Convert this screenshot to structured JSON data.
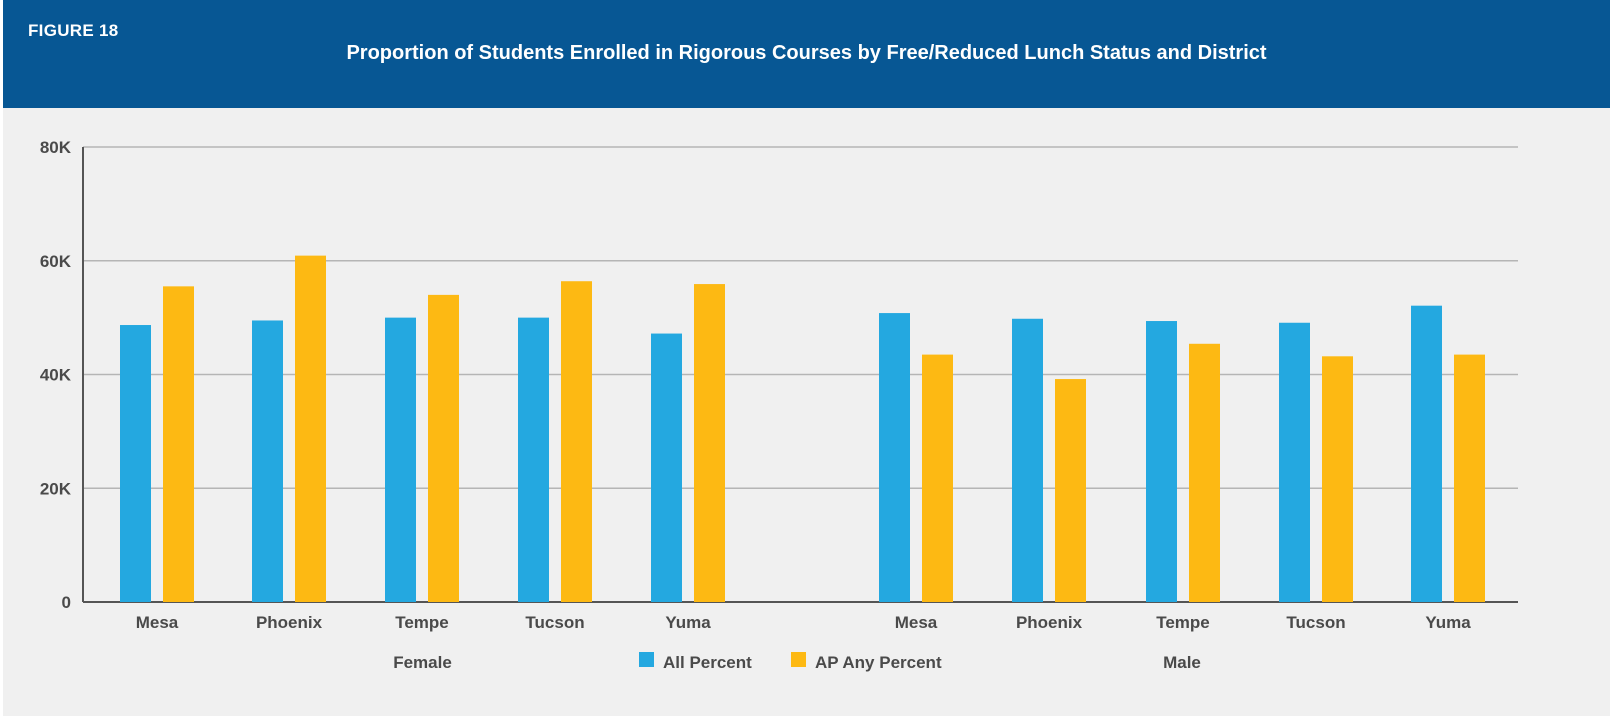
{
  "figure": {
    "label": "FIGURE 18",
    "title": "Proportion of Students Enrolled in Rigorous Courses by Free/Reduced Lunch Status and District"
  },
  "colors": {
    "header_bg": "#075794",
    "series_all": "#24a8e0",
    "series_ap": "#fdb913",
    "grid": "#b5b5b5",
    "axis": "#555555"
  },
  "chart_data": {
    "type": "bar",
    "title": "Proportion of Students Enrolled in Rigorous Courses by Free/Reduced Lunch Status and District",
    "ylim": [
      0,
      80000
    ],
    "y_ticks": [
      {
        "value": 0,
        "label": "0"
      },
      {
        "value": 20000,
        "label": "20K"
      },
      {
        "value": 40000,
        "label": "40K"
      },
      {
        "value": 60000,
        "label": "60K"
      },
      {
        "value": 80000,
        "label": "80K"
      }
    ],
    "grid": true,
    "legend_position": "bottom-center",
    "groups": [
      {
        "name": "Female",
        "categories": [
          "Mesa",
          "Phoenix",
          "Tempe",
          "Tucson",
          "Yuma"
        ]
      },
      {
        "name": "Male",
        "categories": [
          "Mesa",
          "Phoenix",
          "Tempe",
          "Tucson",
          "Yuma"
        ]
      }
    ],
    "series": [
      {
        "name": "All Percent",
        "color": "#24a8e0",
        "values": [
          48700,
          49500,
          50000,
          50000,
          47200,
          50800,
          49800,
          49400,
          49100,
          52100
        ]
      },
      {
        "name": "AP Any Percent",
        "color": "#fdb913",
        "values": [
          55500,
          60900,
          54000,
          56400,
          55900,
          43500,
          39200,
          45400,
          43200,
          43500
        ]
      }
    ]
  }
}
